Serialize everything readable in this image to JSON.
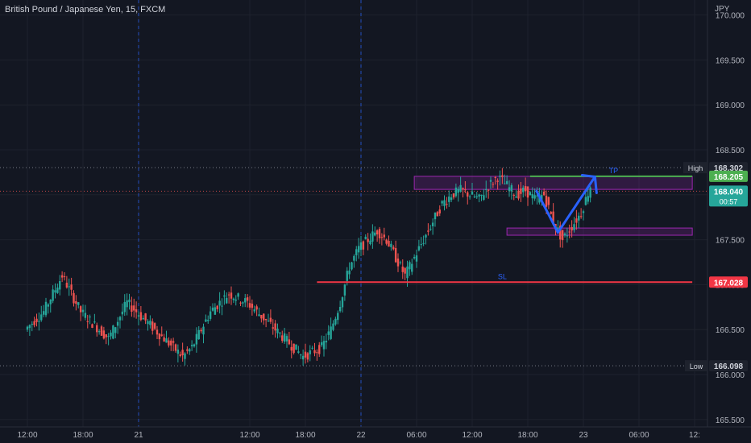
{
  "header": {
    "symbol_title": "British Pound / Japanese Yen, 15, FXCM",
    "currency": "JPY"
  },
  "colors": {
    "background": "#131722",
    "up": "#26a69a",
    "down": "#ef5350",
    "tp": "#4caf50",
    "sl": "#f23645",
    "zone": "#9c27b0",
    "arrow": "#2962ff",
    "text": "#b2b5be"
  },
  "chart_data": {
    "type": "candlestick",
    "ylim": [
      165.5,
      170.0
    ],
    "yticks": [
      "170.000",
      "169.500",
      "169.000",
      "168.500",
      "168.000",
      "167.500",
      "167.000",
      "166.500",
      "166.000",
      "165.500"
    ],
    "ytick_values": [
      170.0,
      169.5,
      169.0,
      168.5,
      168.0,
      167.5,
      167.0,
      166.5,
      166.0,
      165.5
    ],
    "xticks": [
      "12:00",
      "18:00",
      "21",
      "12:00",
      "18:00",
      "22",
      "06:00",
      "12:00",
      "18:00",
      "23",
      "06:00",
      "12:"
    ],
    "xtick_positions": [
      0.25,
      6.25,
      12.25,
      24.25,
      30.25,
      36.25,
      42.25,
      48.25,
      54.25,
      60.25,
      66.25,
      72.25
    ],
    "day_separators": [
      12.25,
      36.25
    ],
    "series_close": [
      166.5,
      166.6,
      166.7,
      166.9,
      167.1,
      166.9,
      166.7,
      166.6,
      166.5,
      166.4,
      166.6,
      166.8,
      166.7,
      166.6,
      166.5,
      166.4,
      166.3,
      166.2,
      166.3,
      166.5,
      166.7,
      166.8,
      166.9,
      166.85,
      166.8,
      166.7,
      166.6,
      166.5,
      166.4,
      166.3,
      166.2,
      166.25,
      166.3,
      166.5,
      166.8,
      167.2,
      167.4,
      167.5,
      167.6,
      167.5,
      167.3,
      167.1,
      167.3,
      167.5,
      167.7,
      167.9,
      168.0,
      168.05,
      168.0,
      167.95,
      168.1,
      168.2,
      168.1,
      168.0,
      168.05,
      167.95,
      168.0,
      167.7,
      167.5,
      167.65,
      167.8,
      168.1
    ],
    "high": {
      "label": "High",
      "value": 168.302
    },
    "low": {
      "label": "Low",
      "value": 166.098
    },
    "current": {
      "value": 168.04,
      "label": "168.040",
      "countdown": "00:57"
    },
    "tp": {
      "label": "TP",
      "value": 168.205,
      "badge": "168.205",
      "x_start": 54.5,
      "x_end": 72.0
    },
    "sl": {
      "label": "SL",
      "value": 167.028,
      "badge": "167.028",
      "x_start": 31.5,
      "x_end": 72.0
    },
    "zones": [
      {
        "y_top": 168.205,
        "y_bottom": 168.06,
        "x_start": 42.0,
        "x_end": 72.0
      },
      {
        "y_top": 167.63,
        "y_bottom": 167.55,
        "x_start": 52.0,
        "x_end": 72.0
      }
    ],
    "projection": [
      {
        "x": 55.2,
        "y": 168.04
      },
      {
        "x": 57.5,
        "y": 167.58
      },
      {
        "x": 61.5,
        "y": 168.2
      }
    ]
  }
}
